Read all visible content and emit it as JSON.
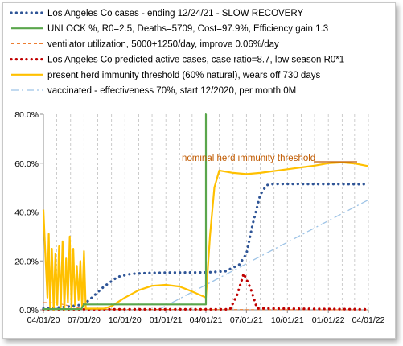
{
  "chart_data": {
    "type": "line",
    "title": "",
    "xlabel": "",
    "ylabel": "",
    "ylim": [
      0,
      80
    ],
    "xlim": [
      "2020-04-01",
      "2022-04-01"
    ],
    "x_ticks": [
      "04/01/20",
      "07/01/20",
      "10/01/20",
      "01/01/21",
      "04/01/21",
      "07/01/21",
      "10/01/21",
      "01/01/22",
      "04/01/22"
    ],
    "y_ticks": [
      "0.0%",
      "20.0%",
      "40.0%",
      "60.0%",
      "80.0%"
    ],
    "grid": "vertical dashed monthly",
    "legend_position": "top",
    "annotation": "nominal herd immunity threshold",
    "series": [
      {
        "name": "Los Angeles Co cases - ending 12/24/21 - SLOW RECOVERY",
        "color": "#2f5597",
        "style": "dotted",
        "points": [
          [
            "2020-04-01",
            0.5
          ],
          [
            "2020-05-01",
            0.9
          ],
          [
            "2020-06-01",
            1.4
          ],
          [
            "2020-07-01",
            2.2
          ],
          [
            "2020-07-20",
            5.2
          ],
          [
            "2020-08-15",
            9.5
          ],
          [
            "2020-09-15",
            13.5
          ],
          [
            "2020-10-15",
            14.7
          ],
          [
            "2020-11-15",
            15.0
          ],
          [
            "2021-01-01",
            15.2
          ],
          [
            "2021-04-05",
            15.3
          ],
          [
            "2021-05-15",
            15.8
          ],
          [
            "2021-06-15",
            18.5
          ],
          [
            "2021-07-01",
            23
          ],
          [
            "2021-07-15",
            35
          ],
          [
            "2021-08-01",
            47
          ],
          [
            "2021-08-15",
            51
          ],
          [
            "2021-09-01",
            51.5
          ],
          [
            "2022-04-01",
            51.4
          ]
        ]
      },
      {
        "name": "UNLOCK %, R0=2.5,  Deaths=5709, Cost=97.9%, Efficiency gain 1.3",
        "color": "#5aa64c",
        "style": "solid",
        "points": [
          [
            "2020-04-01",
            0.3
          ],
          [
            "2020-06-25",
            0.3
          ],
          [
            "2020-07-01",
            2.2
          ],
          [
            "2021-04-01",
            2.2
          ],
          [
            "2021-04-01",
            80
          ],
          [
            "2021-04-02",
            80
          ]
        ]
      },
      {
        "name": "ventilator utilization, 5000+1250/day, improve 0.06%/day",
        "color": "#ed7d31",
        "style": "dashed",
        "points": [
          [
            "2020-04-01",
            3
          ],
          [
            "2020-05-01",
            2.8
          ],
          [
            "2020-07-01",
            0.2
          ],
          [
            "2022-04-01",
            0
          ]
        ]
      },
      {
        "name": "Los Angeles Co predicted active cases, case ratio=8.7, low season R0*1",
        "color": "#c00000",
        "style": "dotted",
        "points": [
          [
            "2020-04-01",
            0.2
          ],
          [
            "2021-05-25",
            0.2
          ],
          [
            "2021-06-10",
            6
          ],
          [
            "2021-06-25",
            14.8
          ],
          [
            "2021-07-10",
            9
          ],
          [
            "2021-07-25",
            0.6
          ],
          [
            "2022-04-01",
            0.2
          ]
        ]
      },
      {
        "name": "present herd immunity threshold (60% natural), wears off 730 days",
        "color": "#ffc000",
        "style": "solid",
        "points": [
          [
            "2020-04-01",
            41
          ],
          [
            "2020-04-05",
            24
          ],
          [
            "2020-04-10",
            5
          ],
          [
            "2020-04-13",
            31
          ],
          [
            "2020-04-16",
            1
          ],
          [
            "2020-04-20",
            25
          ],
          [
            "2020-04-24",
            0
          ],
          [
            "2020-04-28",
            23
          ],
          [
            "2020-05-02",
            2
          ],
          [
            "2020-05-06",
            26
          ],
          [
            "2020-05-10",
            1
          ],
          [
            "2020-05-14",
            28
          ],
          [
            "2020-05-18",
            0
          ],
          [
            "2020-05-22",
            21
          ],
          [
            "2020-05-26",
            3
          ],
          [
            "2020-05-30",
            30
          ],
          [
            "2020-06-03",
            1
          ],
          [
            "2020-06-07",
            25
          ],
          [
            "2020-06-11",
            2
          ],
          [
            "2020-06-15",
            18
          ],
          [
            "2020-06-19",
            4
          ],
          [
            "2020-06-23",
            20
          ],
          [
            "2020-06-27",
            1
          ],
          [
            "2020-07-01",
            24
          ],
          [
            "2020-07-05",
            0.5
          ],
          [
            "2020-08-15",
            0.5
          ],
          [
            "2020-09-01",
            1.5
          ],
          [
            "2020-10-01",
            5
          ],
          [
            "2020-11-01",
            8
          ],
          [
            "2020-12-01",
            9.8
          ],
          [
            "2021-01-01",
            10.2
          ],
          [
            "2021-02-01",
            9.5
          ],
          [
            "2021-03-01",
            7.5
          ],
          [
            "2021-04-01",
            5
          ],
          [
            "2021-04-10",
            30
          ],
          [
            "2021-04-20",
            50
          ],
          [
            "2021-05-01",
            57
          ],
          [
            "2021-06-01",
            56
          ],
          [
            "2021-07-01",
            55.5
          ],
          [
            "2021-08-01",
            56
          ],
          [
            "2021-10-01",
            57.5
          ],
          [
            "2021-12-01",
            59
          ],
          [
            "2022-01-01",
            60
          ],
          [
            "2022-02-01",
            60.3
          ],
          [
            "2022-03-01",
            59.9
          ],
          [
            "2022-04-01",
            58.8
          ]
        ]
      },
      {
        "name": "vaccinated - effectiveness 70%, start 12/2020, per month 0M",
        "color": "#9dc3e6",
        "style": "dashdot",
        "points": [
          [
            "2020-12-15",
            0
          ],
          [
            "2022-04-01",
            45
          ]
        ]
      }
    ]
  }
}
